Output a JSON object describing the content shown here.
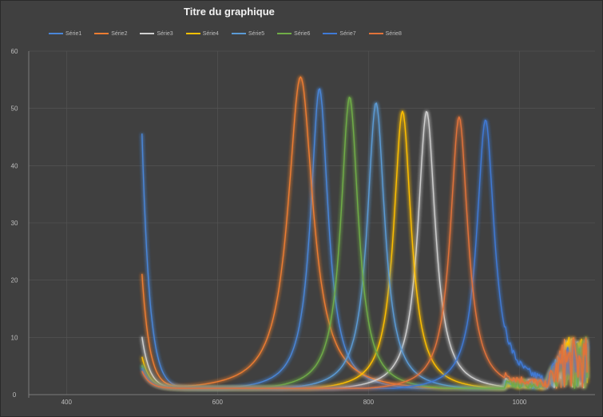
{
  "chart_data": {
    "type": "line",
    "title": "Titre du graphique",
    "xlabel": "",
    "ylabel": "",
    "xlim": [
      350,
      1100
    ],
    "ylim": [
      0,
      60
    ],
    "x_ticks": [
      400,
      600,
      800,
      1000
    ],
    "y_ticks": [
      0,
      10,
      20,
      30,
      40,
      50,
      60
    ],
    "x_tick_labels": [
      "400",
      "600",
      "800",
      "1000"
    ],
    "y_tick_labels": [
      "0",
      "10",
      "20",
      "30",
      "40",
      "50",
      "60"
    ],
    "grid": true,
    "legend_position": "top",
    "series": [
      {
        "name": "Série1",
        "color": "#4a86d8",
        "peak_x": 735,
        "peak_y": 53,
        "start_y": 45.5,
        "width": 14
      },
      {
        "name": "Série2",
        "color": "#ed7d31",
        "peak_x": 710,
        "peak_y": 55,
        "start_y": 21,
        "width": 20
      },
      {
        "name": "Série3",
        "color": "#d0d0d0",
        "peak_x": 877,
        "peak_y": 49,
        "start_y": 10,
        "width": 14
      },
      {
        "name": "Série4",
        "color": "#ffc000",
        "peak_x": 845,
        "peak_y": 49,
        "start_y": 6.5,
        "width": 14
      },
      {
        "name": "Série5",
        "color": "#5b9bd5",
        "peak_x": 810,
        "peak_y": 50.5,
        "start_y": 5,
        "width": 14
      },
      {
        "name": "Série6",
        "color": "#70ad47",
        "peak_x": 775,
        "peak_y": 51.5,
        "start_y": 5,
        "width": 14
      },
      {
        "name": "Série7",
        "color": "#3f7ad6",
        "peak_x": 955,
        "peak_y": 47.5,
        "start_y": 4.5,
        "width": 14
      },
      {
        "name": "Série8",
        "color": "#e2733a",
        "peak_x": 920,
        "peak_y": 48,
        "start_y": 4,
        "width": 14
      }
    ],
    "x_start": 500,
    "x_end": 1090
  }
}
